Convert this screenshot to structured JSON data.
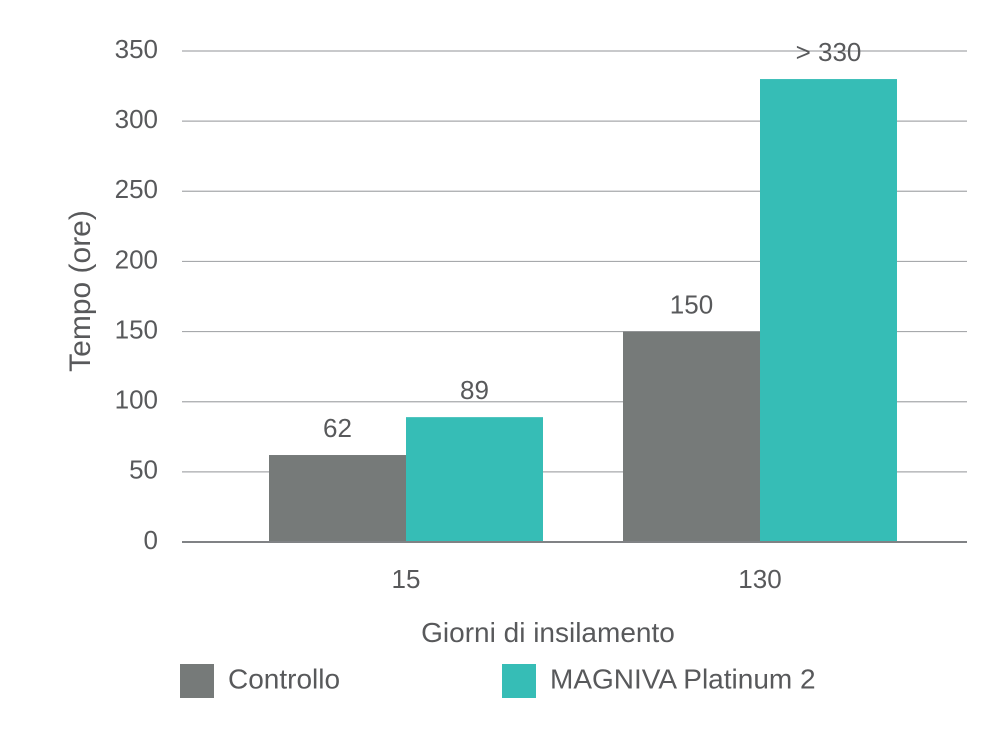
{
  "chart_data": {
    "type": "bar",
    "title": "",
    "xlabel": "Giorni di insilamento",
    "ylabel": "Tempo (ore)",
    "categories": [
      "15",
      "130"
    ],
    "series": [
      {
        "name": "Controllo",
        "color": "#767a79",
        "values": [
          62,
          150
        ],
        "labels": [
          "62",
          "150"
        ]
      },
      {
        "name": "MAGNIVA Platinum 2",
        "color": "#36bdb6",
        "values": [
          89,
          330
        ],
        "labels": [
          "89",
          "> 330"
        ]
      }
    ],
    "ylim": [
      0,
      350
    ],
    "yticks": [
      0,
      50,
      100,
      150,
      200,
      250,
      300,
      350
    ],
    "ytick_labels": [
      "0",
      "50",
      "100",
      "150",
      "200",
      "250",
      "300",
      "350"
    ],
    "grid": true,
    "legend_position": "bottom"
  },
  "colors": {
    "text": "#58595b",
    "grid": "#a7a9ac",
    "axis": "#808285"
  }
}
